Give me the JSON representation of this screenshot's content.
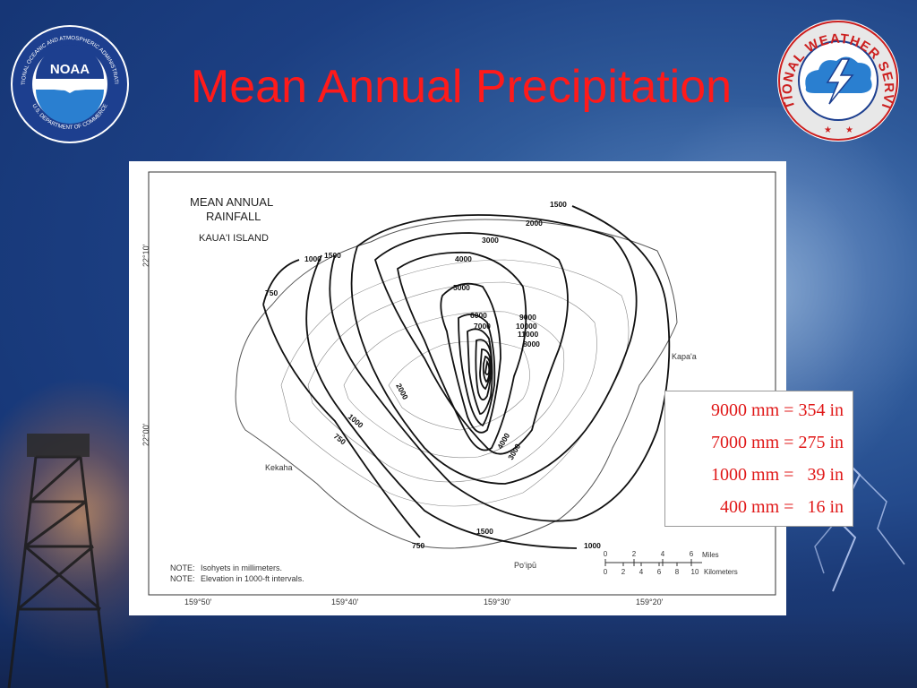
{
  "slide": {
    "title": "Mean Annual Precipitation"
  },
  "logos": {
    "noaa": {
      "center_text": "NOAA",
      "ring_top": "NATIONAL OCEANIC AND ATMOSPHERIC ADMINISTRATION",
      "ring_bottom": "U.S. DEPARTMENT OF COMMERCE"
    },
    "nws": {
      "ring_text": "NATIONAL WEATHER SERVICE"
    }
  },
  "map": {
    "title_line1": "MEAN ANNUAL",
    "title_line2": "RAINFALL",
    "subtitle": "KAUA'I ISLAND",
    "lat_labels": [
      "22°10'",
      "22°00'"
    ],
    "lon_labels": [
      "159°50'",
      "159°40'",
      "159°30'",
      "159°20'"
    ],
    "places": {
      "kapaa": "Kapa'a",
      "kekaha": "Kekaha",
      "poipu": "Poʻipū"
    },
    "isohyet_labels": {
      "l1500_top": "1500",
      "l2000_top": "2000",
      "l3000_top": "3000",
      "l4000_top": "4000",
      "l5000": "5000",
      "l6000": "6000",
      "l7000": "7000",
      "l9000": "9000",
      "l10000": "10000",
      "l11000": "11000",
      "l8000": "8000",
      "l1000_nw": "1000",
      "l1500_nw": "1500",
      "l750_w": "750",
      "l2000_mid": "2000",
      "l1000_sw": "1000",
      "l750_sw": "750",
      "l4000_s": "4000",
      "l3000_s": "3000",
      "l1500_s": "1500",
      "l1000_se": "1000",
      "l750_s": "750"
    },
    "notes": {
      "line1_label": "NOTE:",
      "line1_text": "Isohyets in millimeters.",
      "line2_label": "NOTE:",
      "line2_text": "Elevation in 1000-ft intervals."
    },
    "scale": {
      "miles_ticks": [
        "0",
        "2",
        "4",
        "6"
      ],
      "miles_label": "Miles",
      "km_ticks": [
        "0",
        "2",
        "4",
        "6",
        "8",
        "10"
      ],
      "km_label": "Kilometers"
    }
  },
  "conversions": [
    "9000 mm = 354 in",
    "7000 mm = 275 in",
    "1000 mm =   39 in",
    "400 mm =   16 in"
  ]
}
